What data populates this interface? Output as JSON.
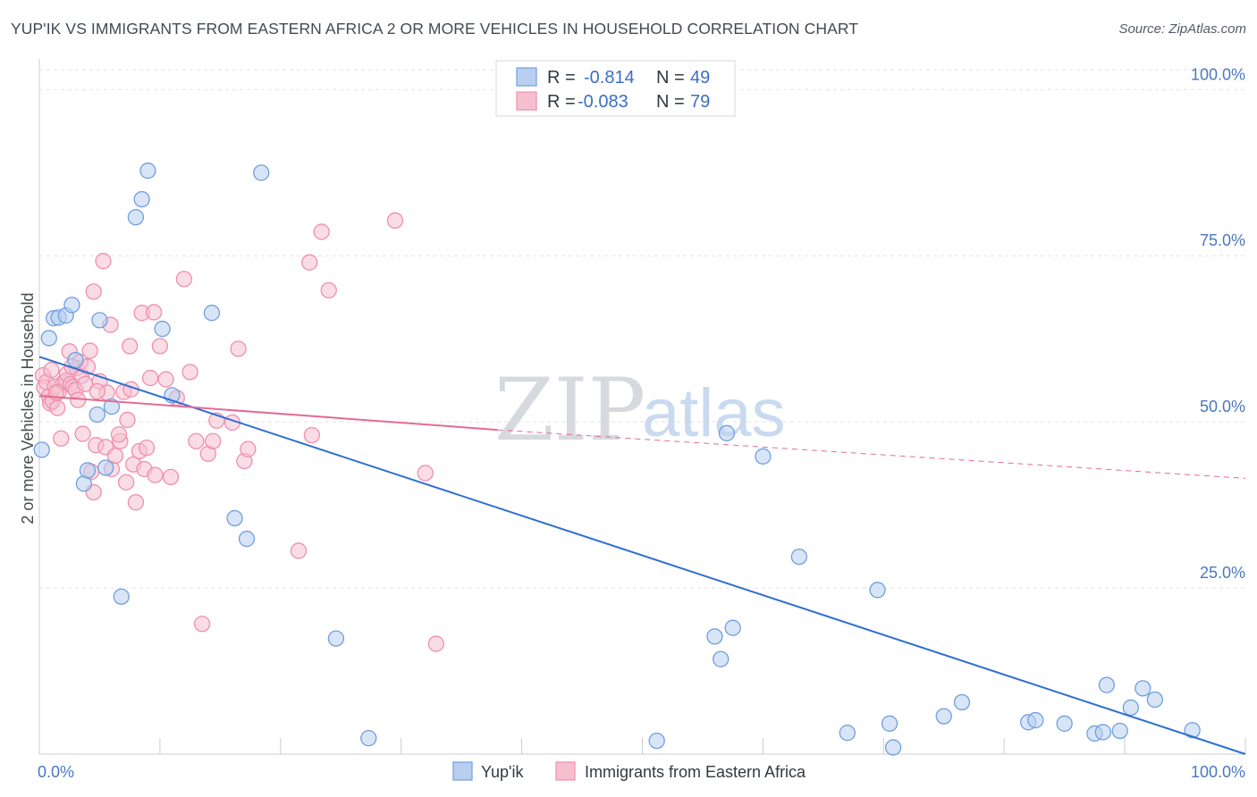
{
  "title": "YUP'IK VS IMMIGRANTS FROM EASTERN AFRICA 2 OR MORE VEHICLES IN HOUSEHOLD CORRELATION CHART",
  "source": "Source: ZipAtlas.com",
  "watermark": {
    "zip": "ZIP",
    "atlas": "atlas"
  },
  "colors": {
    "blue": "#6f9fe0",
    "blue_fill": "#b8cff0",
    "blue_line": "#2f6fd0",
    "pink": "#ee8fae",
    "pink_fill": "#f6bfd0",
    "pink_line": "#e46a95",
    "grid": "#dfe2e6",
    "axis": "#c8ccd2"
  },
  "legend": {
    "rows": [
      {
        "r_label": "R =",
        "r_value": "-0.814",
        "n_label": "N =",
        "n_value": "49"
      },
      {
        "r_label": "R =",
        "r_value": "-0.083",
        "n_label": "N =",
        "n_value": "79"
      }
    ]
  },
  "chart_data": {
    "type": "scatter",
    "title": "YUP'IK VS IMMIGRANTS FROM EASTERN AFRICA 2 OR MORE VEHICLES IN HOUSEHOLD CORRELATION CHART",
    "xlabel": "",
    "ylabel": "2 or more Vehicles in Household",
    "xlim": [
      0,
      100
    ],
    "ylim": [
      0,
      103
    ],
    "x_tick_labels": [
      "0.0%",
      "100.0%"
    ],
    "y_ticks": [
      25,
      50,
      75,
      100
    ],
    "y_tick_labels": [
      "25.0%",
      "50.0%",
      "75.0%",
      "100.0%"
    ],
    "grid": true,
    "series": [
      {
        "name": "Yup'ik",
        "r": -0.814,
        "n": 49,
        "trend": {
          "x": [
            0,
            100
          ],
          "y": [
            59.8,
            0.0
          ]
        },
        "points": [
          [
            0.2,
            45.8
          ],
          [
            0.8,
            62.6
          ],
          [
            1.2,
            65.6
          ],
          [
            1.6,
            65.7
          ],
          [
            2.2,
            66.0
          ],
          [
            2.7,
            67.6
          ],
          [
            3.0,
            59.3
          ],
          [
            3.7,
            40.7
          ],
          [
            4.0,
            42.7
          ],
          [
            4.8,
            51.1
          ],
          [
            5.0,
            65.3
          ],
          [
            5.5,
            43.1
          ],
          [
            6.0,
            52.3
          ],
          [
            6.8,
            23.7
          ],
          [
            8.0,
            80.8
          ],
          [
            8.5,
            83.5
          ],
          [
            9.0,
            87.8
          ],
          [
            10.2,
            64.0
          ],
          [
            11.0,
            54.0
          ],
          [
            14.3,
            66.4
          ],
          [
            16.2,
            35.5
          ],
          [
            17.2,
            32.4
          ],
          [
            18.4,
            87.5
          ],
          [
            24.6,
            17.4
          ],
          [
            27.3,
            2.4
          ],
          [
            51.2,
            2.0
          ],
          [
            56.0,
            17.7
          ],
          [
            56.5,
            14.3
          ],
          [
            57.0,
            48.3
          ],
          [
            57.5,
            19.0
          ],
          [
            60.0,
            44.8
          ],
          [
            63.0,
            29.7
          ],
          [
            67.0,
            3.2
          ],
          [
            69.5,
            24.7
          ],
          [
            70.5,
            4.6
          ],
          [
            70.8,
            1.0
          ],
          [
            75.0,
            5.7
          ],
          [
            76.5,
            7.8
          ],
          [
            82.0,
            4.8
          ],
          [
            82.6,
            5.1
          ],
          [
            85.0,
            4.6
          ],
          [
            87.5,
            3.1
          ],
          [
            88.2,
            3.3
          ],
          [
            88.5,
            10.4
          ],
          [
            89.6,
            3.5
          ],
          [
            90.5,
            7.0
          ],
          [
            91.5,
            9.9
          ],
          [
            92.5,
            8.2
          ],
          [
            95.6,
            3.6
          ]
        ]
      },
      {
        "name": "Immigrants from Eastern Africa",
        "r": -0.083,
        "n": 79,
        "trend": {
          "x": [
            0,
            38
          ],
          "y": [
            53.9,
            48.8
          ]
        },
        "trend_dashed": {
          "x": [
            38,
            100
          ],
          "y": [
            48.8,
            41.5
          ]
        },
        "points": [
          [
            0.3,
            57.0
          ],
          [
            0.4,
            55.2
          ],
          [
            0.6,
            56.0
          ],
          [
            0.8,
            53.8
          ],
          [
            0.9,
            52.8
          ],
          [
            1.0,
            57.8
          ],
          [
            1.1,
            53.1
          ],
          [
            1.3,
            55.3
          ],
          [
            1.5,
            52.1
          ],
          [
            1.6,
            54.5
          ],
          [
            1.8,
            47.5
          ],
          [
            2.0,
            55.9
          ],
          [
            2.2,
            56.2
          ],
          [
            2.3,
            57.2
          ],
          [
            2.5,
            60.6
          ],
          [
            2.6,
            55.7
          ],
          [
            2.8,
            55.3
          ],
          [
            3.0,
            54.8
          ],
          [
            3.1,
            58.1
          ],
          [
            3.2,
            53.3
          ],
          [
            3.4,
            59.0
          ],
          [
            3.5,
            56.9
          ],
          [
            3.6,
            48.2
          ],
          [
            3.8,
            55.7
          ],
          [
            4.0,
            58.3
          ],
          [
            4.2,
            60.7
          ],
          [
            4.3,
            42.5
          ],
          [
            4.5,
            69.6
          ],
          [
            4.5,
            39.4
          ],
          [
            4.7,
            46.5
          ],
          [
            5.0,
            56.1
          ],
          [
            5.3,
            74.2
          ],
          [
            5.5,
            46.2
          ],
          [
            5.6,
            54.4
          ],
          [
            5.9,
            64.6
          ],
          [
            6.0,
            42.9
          ],
          [
            6.3,
            44.9
          ],
          [
            6.7,
            47.1
          ],
          [
            7.0,
            54.5
          ],
          [
            7.2,
            40.9
          ],
          [
            7.3,
            50.3
          ],
          [
            7.5,
            61.4
          ],
          [
            7.6,
            54.9
          ],
          [
            7.8,
            43.6
          ],
          [
            8.0,
            37.9
          ],
          [
            8.3,
            45.6
          ],
          [
            8.5,
            66.4
          ],
          [
            8.7,
            42.9
          ],
          [
            8.9,
            46.1
          ],
          [
            9.2,
            56.6
          ],
          [
            9.5,
            66.5
          ],
          [
            9.6,
            42.0
          ],
          [
            10.0,
            61.4
          ],
          [
            10.5,
            56.4
          ],
          [
            10.9,
            41.7
          ],
          [
            11.4,
            53.6
          ],
          [
            12.0,
            71.5
          ],
          [
            12.5,
            57.5
          ],
          [
            13.0,
            47.1
          ],
          [
            13.5,
            19.6
          ],
          [
            14.0,
            45.2
          ],
          [
            14.4,
            47.1
          ],
          [
            14.7,
            50.2
          ],
          [
            16.0,
            49.9
          ],
          [
            16.5,
            61.0
          ],
          [
            17.0,
            44.1
          ],
          [
            17.3,
            45.9
          ],
          [
            21.5,
            30.6
          ],
          [
            22.4,
            74.0
          ],
          [
            22.6,
            48.0
          ],
          [
            23.4,
            78.6
          ],
          [
            24.0,
            69.8
          ],
          [
            29.5,
            80.3
          ],
          [
            32.0,
            42.3
          ],
          [
            32.9,
            16.6
          ],
          [
            1.4,
            54.4
          ],
          [
            2.7,
            58.3
          ],
          [
            4.8,
            54.6
          ],
          [
            6.6,
            48.1
          ]
        ]
      }
    ],
    "legend_entries": [
      "Yup'ik",
      "Immigrants from Eastern Africa"
    ],
    "legend_position": "top-center"
  }
}
